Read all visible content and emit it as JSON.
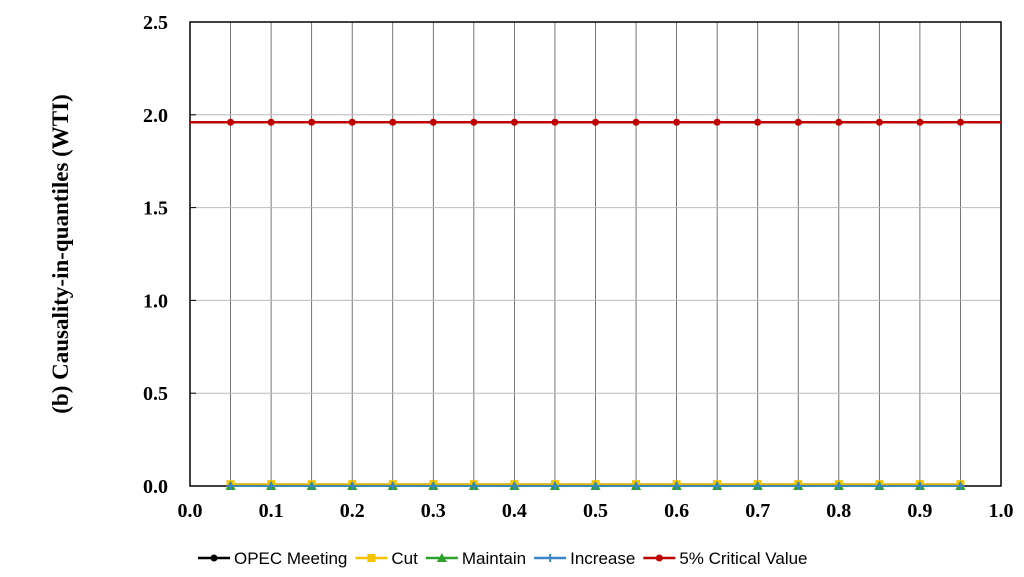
{
  "chart_data": {
    "type": "line",
    "title": "",
    "ylabel": "(b) Causality-in-quantiles (WTI)",
    "xlabel": "",
    "xlim": [
      0.0,
      1.0
    ],
    "ylim": [
      0.0,
      2.5
    ],
    "x_ticks": [
      "0.0",
      "0.1",
      "0.2",
      "0.3",
      "0.4",
      "0.5",
      "0.6",
      "0.7",
      "0.8",
      "0.9",
      "1.0"
    ],
    "y_ticks": [
      "0.0",
      "0.5",
      "1.0",
      "1.5",
      "2.0",
      "2.5"
    ],
    "grid": true,
    "legend_position": "bottom",
    "x": [
      0.05,
      0.1,
      0.15,
      0.2,
      0.25,
      0.3,
      0.35,
      0.4,
      0.45,
      0.5,
      0.55,
      0.6,
      0.65,
      0.7,
      0.75,
      0.8,
      0.85,
      0.9,
      0.95
    ],
    "series": [
      {
        "name": "OPEC Meeting",
        "color": "#000000",
        "marker": "circle",
        "values": [
          0.01,
          0.01,
          0.01,
          0.01,
          0.01,
          0.01,
          0.01,
          0.01,
          0.01,
          0.01,
          0.01,
          0.01,
          0.01,
          0.01,
          0.01,
          0.01,
          0.01,
          0.01,
          0.01
        ]
      },
      {
        "name": "Cut",
        "color": "#f5c400",
        "marker": "square",
        "values": [
          0.01,
          0.01,
          0.01,
          0.01,
          0.01,
          0.01,
          0.01,
          0.01,
          0.01,
          0.01,
          0.01,
          0.01,
          0.01,
          0.01,
          0.01,
          0.01,
          0.01,
          0.01,
          0.01
        ]
      },
      {
        "name": "Maintain",
        "color": "#2ca02c",
        "marker": "triangle",
        "values": [
          0.0,
          0.0,
          0.0,
          0.0,
          0.0,
          0.0,
          0.0,
          0.0,
          0.0,
          0.0,
          0.0,
          0.0,
          0.0,
          0.0,
          0.0,
          0.0,
          0.0,
          0.0,
          0.0
        ]
      },
      {
        "name": "Increase",
        "color": "#3a86c8",
        "marker": "cross",
        "values": [
          0.0,
          0.0,
          0.0,
          0.0,
          0.0,
          0.0,
          0.0,
          0.0,
          0.0,
          0.0,
          0.0,
          0.0,
          0.0,
          0.0,
          0.0,
          0.0,
          0.0,
          0.0,
          0.0
        ]
      },
      {
        "name": "5% Critical Value",
        "color": "#c00000",
        "marker": "circle",
        "extends_to_axes": true,
        "values": [
          1.96,
          1.96,
          1.96,
          1.96,
          1.96,
          1.96,
          1.96,
          1.96,
          1.96,
          1.96,
          1.96,
          1.96,
          1.96,
          1.96,
          1.96,
          1.96,
          1.96,
          1.96,
          1.96
        ]
      }
    ]
  }
}
